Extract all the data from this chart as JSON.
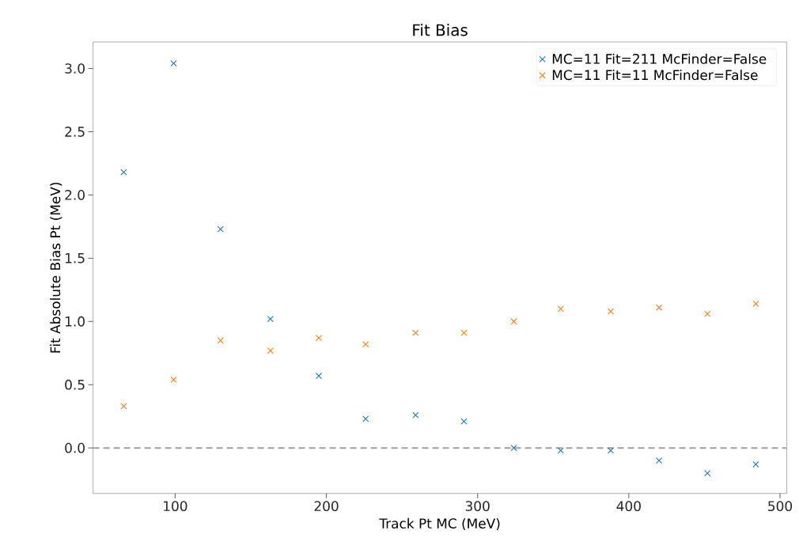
{
  "chart_data": {
    "type": "scatter",
    "title": "Fit Bias",
    "xlabel": "Track Pt MC (MeV)",
    "ylabel": "Fit Absolute Bias Pt (MeV)",
    "x": [
      66,
      99,
      130,
      163,
      195,
      226,
      259,
      291,
      324,
      355,
      388,
      420,
      452,
      484
    ],
    "series": [
      {
        "name": "MC=11 Fit=211 McFinder=False",
        "color": "#1f77b4",
        "values": [
          2.18,
          3.04,
          1.73,
          1.02,
          0.57,
          0.23,
          0.26,
          0.21,
          0.0,
          -0.02,
          -0.02,
          -0.1,
          -0.2,
          -0.13
        ]
      },
      {
        "name": "MC=11 Fit=11 McFinder=False",
        "color": "#ff7f0e",
        "values": [
          0.33,
          0.54,
          0.85,
          0.77,
          0.87,
          0.82,
          0.91,
          0.91,
          1.0,
          1.1,
          1.08,
          1.11,
          1.06,
          1.14
        ]
      }
    ],
    "xlim": [
      45.7,
      504.5
    ],
    "ylim": [
      -0.36,
      3.21
    ],
    "xticks": [
      100,
      200,
      300,
      400,
      500
    ],
    "yticks": [
      {
        "value": 0,
        "label": "0.0"
      },
      0.5,
      {
        "value": 1,
        "label": "1.0"
      },
      1.5,
      {
        "value": 2,
        "label": "2.0"
      },
      2.5,
      {
        "value": 3,
        "label": "3.0"
      }
    ],
    "ref_lines": [
      {
        "axis": "y",
        "value": 0,
        "color": "#a0a0a0",
        "line_style": "dashed"
      }
    ],
    "grid": false,
    "legend": "top right",
    "marker": "cross"
  }
}
